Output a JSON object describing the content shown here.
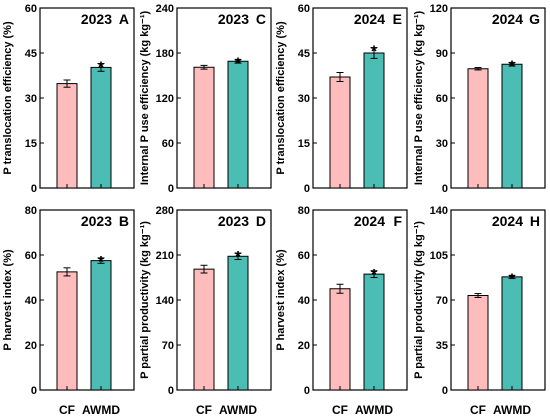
{
  "colors": {
    "CF": "#ffbcbc",
    "AWMD": "#4cbdb5",
    "outline": "#000000"
  },
  "chart_data": [
    {
      "type": "bar",
      "panel": "A",
      "year": "2023",
      "categories": [
        "CF",
        "AWMD"
      ],
      "values": [
        34.8,
        40.2
      ],
      "errors": [
        1.2,
        1.3
      ],
      "significance": [
        "",
        "*"
      ],
      "ylabel": "P translocation efficiency (%)",
      "ylim": [
        0,
        60
      ],
      "yticks": [
        "0",
        "15",
        "30",
        "45",
        "60"
      ],
      "xtick_labels": [
        "CF",
        "AWMD"
      ]
    },
    {
      "type": "bar",
      "panel": "C",
      "year": "2023",
      "categories": [
        "CF",
        "AWMD"
      ],
      "values": [
        161,
        169
      ],
      "errors": [
        2.5,
        2.5
      ],
      "significance": [
        "",
        "*"
      ],
      "ylabel": "Internal P use efficiency (kg kg⁻¹)",
      "ylim": [
        0,
        240
      ],
      "yticks": [
        "0",
        "60",
        "120",
        "180",
        "240"
      ],
      "xtick_labels": [
        "CF",
        "AWMD"
      ]
    },
    {
      "type": "bar",
      "panel": "E",
      "year": "2024",
      "categories": [
        "CF",
        "AWMD"
      ],
      "values": [
        37,
        45
      ],
      "errors": [
        1.5,
        1.8
      ],
      "significance": [
        "",
        "*"
      ],
      "ylabel": "P translocation efficiency (%)",
      "ylim": [
        0,
        60
      ],
      "yticks": [
        "0",
        "15",
        "30",
        "45",
        "60"
      ],
      "xtick_labels": [
        "CF",
        "AWMD"
      ]
    },
    {
      "type": "bar",
      "panel": "G",
      "year": "2024",
      "categories": [
        "CF",
        "AWMD"
      ],
      "values": [
        79.5,
        82.5
      ],
      "errors": [
        0.8,
        1.2
      ],
      "significance": [
        "",
        "*"
      ],
      "ylabel": "Internal P use efficiency (kg kg⁻¹)",
      "ylim": [
        0,
        120
      ],
      "yticks": [
        "0",
        "30",
        "60",
        "90",
        "120"
      ],
      "xtick_labels": [
        "CF",
        "AWMD"
      ]
    },
    {
      "type": "bar",
      "panel": "B",
      "year": "2023",
      "categories": [
        "CF",
        "AWMD"
      ],
      "values": [
        52.5,
        57.5
      ],
      "errors": [
        1.8,
        1.2
      ],
      "significance": [
        "",
        "*"
      ],
      "ylabel": "P harvest index (%)",
      "ylim": [
        0,
        80
      ],
      "yticks": [
        "0",
        "20",
        "40",
        "60",
        "80"
      ],
      "xtick_labels": [
        "CF",
        "AWMD"
      ]
    },
    {
      "type": "bar",
      "panel": "D",
      "year": "2023",
      "categories": [
        "CF",
        "AWMD"
      ],
      "values": [
        188,
        208
      ],
      "errors": [
        6,
        5
      ],
      "significance": [
        "",
        "*"
      ],
      "ylabel": "P partial productivity (kg kg⁻¹)",
      "ylim": [
        0,
        280
      ],
      "yticks": [
        "0",
        "70",
        "140",
        "210",
        "280"
      ],
      "xtick_labels": [
        "CF",
        "AWMD"
      ]
    },
    {
      "type": "bar",
      "panel": "F",
      "year": "2024",
      "categories": [
        "CF",
        "AWMD"
      ],
      "values": [
        45,
        51.5
      ],
      "errors": [
        2,
        1.5
      ],
      "significance": [
        "",
        "*"
      ],
      "ylabel": "P harvest index (%)",
      "ylim": [
        0,
        80
      ],
      "yticks": [
        "0",
        "20",
        "40",
        "60",
        "80"
      ],
      "xtick_labels": [
        "CF",
        "AWMD"
      ]
    },
    {
      "type": "bar",
      "panel": "H",
      "year": "2024",
      "categories": [
        "CF",
        "AWMD"
      ],
      "values": [
        73.5,
        88
      ],
      "errors": [
        1.5,
        1.2
      ],
      "significance": [
        "",
        "*"
      ],
      "ylabel": "P partial productivity (kg kg⁻¹)",
      "ylim": [
        0,
        140
      ],
      "yticks": [
        "0",
        "35",
        "70",
        "105",
        "140"
      ],
      "xtick_labels": [
        "CF",
        "AWMD"
      ]
    }
  ]
}
